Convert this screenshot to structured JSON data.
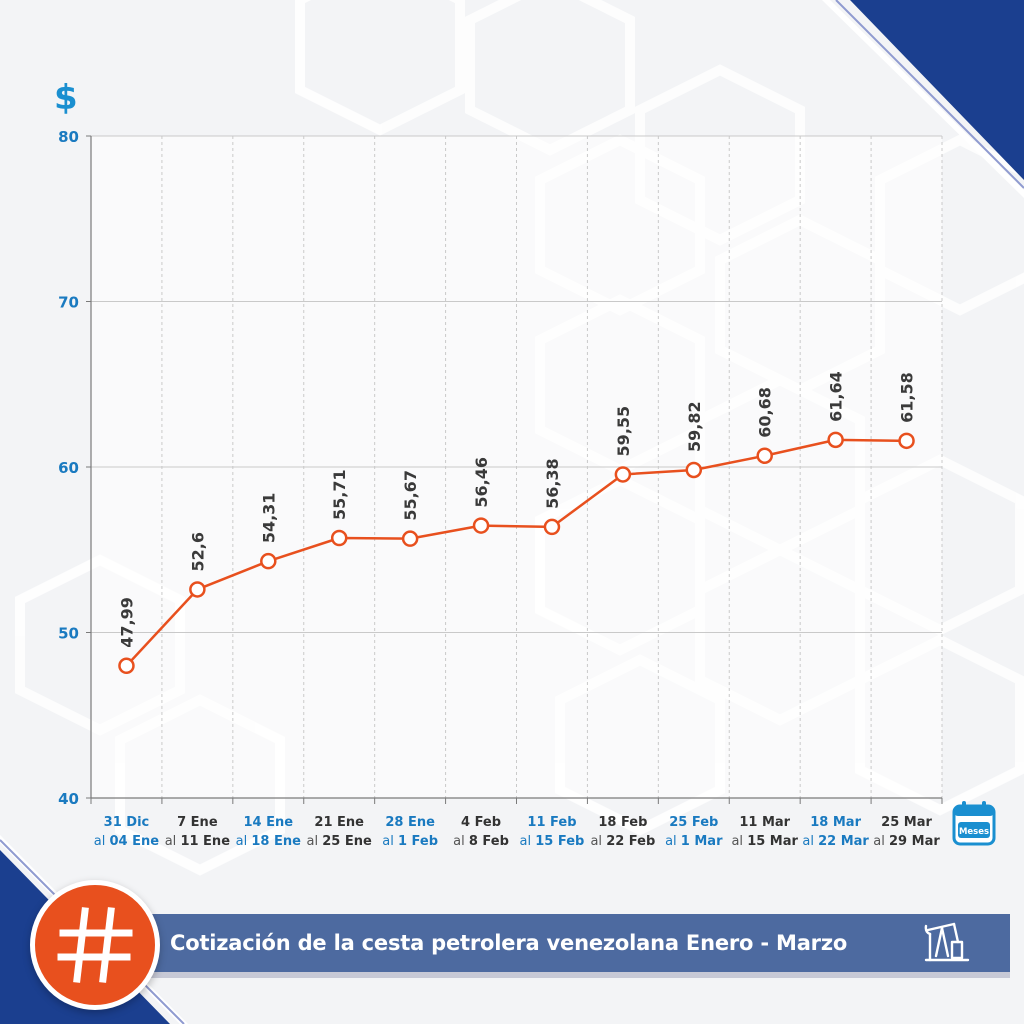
{
  "header": {
    "currency_symbol": "$"
  },
  "banner": {
    "title": "Cotización de la cesta petrolera venezolana Enero - Marzo",
    "hash_icon": "hashtag-icon",
    "pump_icon": "oil-pump-icon"
  },
  "x_axis_icon": {
    "name": "calendar-icon",
    "label": "Meses"
  },
  "colors": {
    "line": "#e8501e",
    "axis_text": "#1a7ac0",
    "value_text": "#3a3a3a",
    "banner": "#4d6aa0",
    "navy": "#1b3f8f"
  },
  "chart_data": {
    "type": "line",
    "ylim": [
      40,
      80
    ],
    "yticks": [
      40,
      50,
      60,
      70,
      80
    ],
    "grid": true,
    "categories": [
      {
        "line1": "31 Dic",
        "pre": "al ",
        "post": "04 Ene",
        "blue": true
      },
      {
        "line1": "7 Ene",
        "pre": "al ",
        "post": "11 Ene",
        "blue": false
      },
      {
        "line1": "14 Ene",
        "pre": "al ",
        "post": "18 Ene",
        "blue": true
      },
      {
        "line1": "21 Ene",
        "pre": "al ",
        "post": "25 Ene",
        "blue": false
      },
      {
        "line1": "28 Ene",
        "pre": "al ",
        "post": "1 Feb",
        "blue": true
      },
      {
        "line1": "4 Feb",
        "pre": "al ",
        "post": "8 Feb",
        "blue": false
      },
      {
        "line1": "11 Feb",
        "pre": "al ",
        "post": "15 Feb",
        "blue": true
      },
      {
        "line1": "18 Feb",
        "pre": "al ",
        "post": "22 Feb",
        "blue": false
      },
      {
        "line1": "25 Feb",
        "pre": "al ",
        "post": "1 Mar",
        "blue": true
      },
      {
        "line1": "11 Mar",
        "pre": "al ",
        "post": "15 Mar",
        "blue": false
      },
      {
        "line1": "18 Mar",
        "pre": "al ",
        "post": "22 Mar",
        "blue": true
      },
      {
        "line1": "25 Mar",
        "pre": "al ",
        "post": "29 Mar",
        "blue": false
      }
    ],
    "values": [
      47.99,
      52.6,
      54.31,
      55.71,
      55.67,
      56.46,
      56.38,
      59.55,
      59.82,
      60.68,
      61.64,
      61.58
    ],
    "value_labels": [
      "47,99",
      "52,6",
      "54,31",
      "55,71",
      "55,67",
      "56,46",
      "56,38",
      "59,55",
      "59,82",
      "60,68",
      "61,64",
      "61,58"
    ]
  }
}
